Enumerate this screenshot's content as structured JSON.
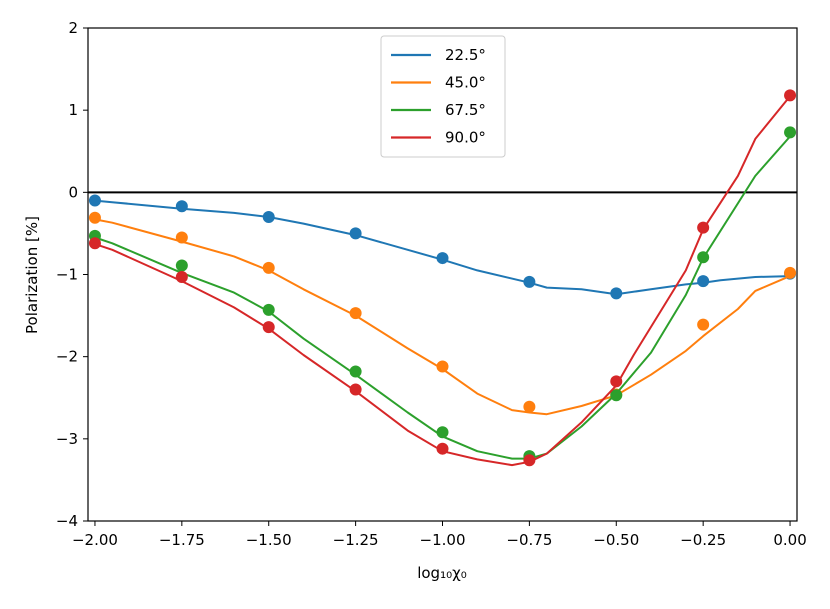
{
  "chart_data": {
    "type": "line",
    "xlabel": "log₁₀χ₀",
    "ylabel": "Polarization [%]",
    "xlim": [
      -2.02,
      0.02
    ],
    "ylim": [
      -4,
      2
    ],
    "x_ticks": [
      -2.0,
      -1.75,
      -1.5,
      -1.25,
      -1.0,
      -0.75,
      -0.5,
      -0.25,
      0.0
    ],
    "x_tick_labels": [
      "−2.00",
      "−1.75",
      "−1.50",
      "−1.25",
      "−1.00",
      "−0.75",
      "−0.50",
      "−0.25",
      "0.00"
    ],
    "y_ticks": [
      -4,
      -3,
      -2,
      -1,
      0,
      1,
      2
    ],
    "y_tick_labels": [
      "−4",
      "−3",
      "−2",
      "−1",
      "0",
      "1",
      "2"
    ],
    "grid": false,
    "legend_position": "upper-center",
    "reference_line": 0,
    "series": [
      {
        "name": "22.5°",
        "color": "#1f77b4",
        "points_x": [
          -2.0,
          -1.75,
          -1.5,
          -1.25,
          -1.0,
          -0.75,
          -0.5,
          -0.25,
          0.0
        ],
        "points_y": [
          -0.1,
          -0.17,
          -0.3,
          -0.5,
          -0.8,
          -1.09,
          -1.23,
          -1.08,
          -0.99
        ],
        "line_x": [
          -2.0,
          -1.95,
          -1.75,
          -1.6,
          -1.5,
          -1.4,
          -1.25,
          -1.1,
          -1.0,
          -0.9,
          -0.75,
          -0.7,
          -0.6,
          -0.5,
          -0.4,
          -0.3,
          -0.25,
          -0.2,
          -0.1,
          0.0
        ],
        "line_y": [
          -0.1,
          -0.12,
          -0.2,
          -0.25,
          -0.3,
          -0.38,
          -0.52,
          -0.7,
          -0.82,
          -0.95,
          -1.1,
          -1.16,
          -1.18,
          -1.24,
          -1.18,
          -1.12,
          -1.1,
          -1.07,
          -1.03,
          -1.02
        ]
      },
      {
        "name": "45.0°",
        "color": "#ff7f0e",
        "points_x": [
          -2.0,
          -1.75,
          -1.5,
          -1.25,
          -1.0,
          -0.75,
          -0.5,
          -0.25,
          0.0
        ],
        "points_y": [
          -0.31,
          -0.55,
          -0.92,
          -1.47,
          -2.12,
          -2.61,
          -2.46,
          -1.61,
          -0.98
        ],
        "line_x": [
          -2.0,
          -1.95,
          -1.75,
          -1.6,
          -1.5,
          -1.4,
          -1.25,
          -1.1,
          -1.0,
          -0.9,
          -0.8,
          -0.75,
          -0.7,
          -0.6,
          -0.5,
          -0.4,
          -0.3,
          -0.25,
          -0.15,
          -0.1,
          0.0
        ],
        "line_y": [
          -0.33,
          -0.37,
          -0.6,
          -0.78,
          -0.95,
          -1.18,
          -1.5,
          -1.9,
          -2.15,
          -2.45,
          -2.65,
          -2.68,
          -2.7,
          -2.6,
          -2.47,
          -2.22,
          -1.93,
          -1.75,
          -1.42,
          -1.2,
          -1.02
        ]
      },
      {
        "name": "67.5°",
        "color": "#2ca02c",
        "points_x": [
          -2.0,
          -1.75,
          -1.5,
          -1.25,
          -1.0,
          -0.75,
          -0.5,
          -0.25,
          0.0
        ],
        "points_y": [
          -0.53,
          -0.89,
          -1.43,
          -2.18,
          -2.92,
          -3.21,
          -2.47,
          -0.79,
          0.73
        ],
        "line_x": [
          -2.0,
          -1.95,
          -1.75,
          -1.6,
          -1.5,
          -1.4,
          -1.25,
          -1.1,
          -1.0,
          -0.9,
          -0.8,
          -0.75,
          -0.7,
          -0.6,
          -0.5,
          -0.4,
          -0.3,
          -0.25,
          -0.1,
          0.0
        ],
        "line_y": [
          -0.55,
          -0.62,
          -0.98,
          -1.22,
          -1.45,
          -1.78,
          -2.22,
          -2.68,
          -2.97,
          -3.15,
          -3.24,
          -3.24,
          -3.18,
          -2.85,
          -2.45,
          -1.95,
          -1.25,
          -0.8,
          0.2,
          0.68
        ]
      },
      {
        "name": "90.0°",
        "color": "#d62728",
        "points_x": [
          -2.0,
          -1.75,
          -1.5,
          -1.25,
          -1.0,
          -0.75,
          -0.5,
          -0.25,
          0.0
        ],
        "points_y": [
          -0.62,
          -1.03,
          -1.64,
          -2.4,
          -3.12,
          -3.26,
          -2.3,
          -0.43,
          1.18
        ],
        "line_x": [
          -2.0,
          -1.95,
          -1.75,
          -1.6,
          -1.5,
          -1.4,
          -1.25,
          -1.1,
          -1.0,
          -0.9,
          -0.8,
          -0.75,
          -0.7,
          -0.6,
          -0.5,
          -0.45,
          -0.3,
          -0.25,
          -0.15,
          -0.1,
          0.0
        ],
        "line_y": [
          -0.63,
          -0.7,
          -1.08,
          -1.4,
          -1.66,
          -1.98,
          -2.42,
          -2.9,
          -3.15,
          -3.25,
          -3.32,
          -3.28,
          -3.18,
          -2.8,
          -2.35,
          -1.98,
          -0.95,
          -0.45,
          0.2,
          0.65,
          1.17
        ]
      }
    ]
  }
}
